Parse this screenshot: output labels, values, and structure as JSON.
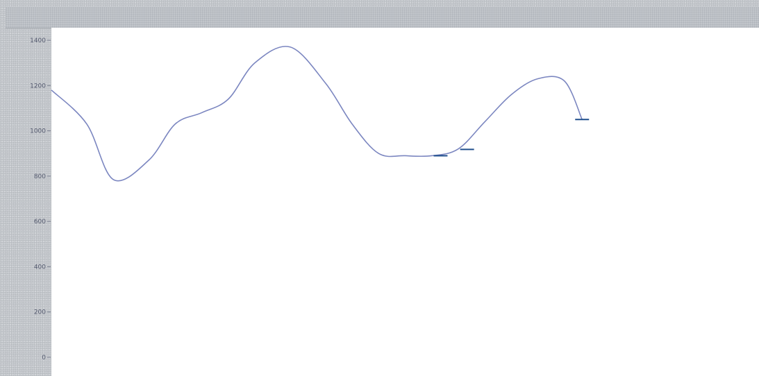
{
  "chart_data": {
    "type": "line",
    "title": "",
    "xlabel": "",
    "ylabel": "",
    "ylim": [
      0,
      1400
    ],
    "yticks": [
      0,
      200,
      400,
      600,
      800,
      1000,
      1200,
      1400
    ],
    "ytick_labels": [
      "0",
      "200",
      "400",
      "600",
      "800",
      "1000",
      "1200",
      "1400"
    ],
    "grid": false,
    "line_color": "#7b86c0",
    "highlight_color": "#1e4e8c",
    "series": [
      {
        "x": [
          0,
          8,
          14,
          22,
          28,
          34,
          40,
          46,
          54,
          62,
          68,
          74,
          80,
          86,
          92,
          98,
          104,
          110,
          116,
          120
        ],
        "y": [
          1180,
          1030,
          785,
          870,
          1030,
          1080,
          1140,
          1300,
          1370,
          1210,
          1030,
          900,
          890,
          890,
          920,
          1040,
          1160,
          1230,
          1220,
          1050
        ]
      }
    ]
  }
}
